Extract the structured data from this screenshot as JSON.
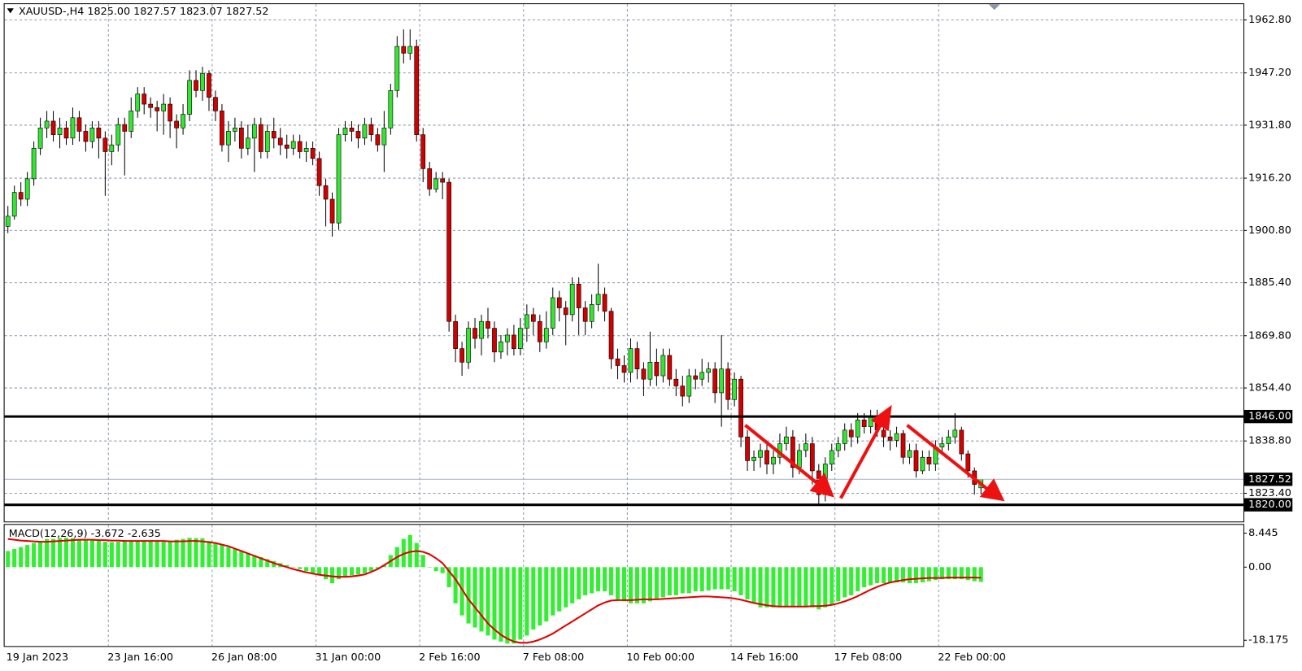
{
  "chart_data": [
    {
      "type": "candlestick",
      "title": "XAUUSD-,H4 1825.00 1827.57 1823.07 1827.52",
      "categories": [
        "19 Jan 2023",
        null,
        null,
        null,
        null,
        null,
        null,
        null,
        null,
        null,
        null,
        null,
        null,
        null,
        null,
        null,
        "23 Jan 16:00",
        null,
        null,
        null,
        null,
        null,
        null,
        null,
        null,
        null,
        null,
        null,
        null,
        null,
        null,
        null,
        "26 Jan 08:00",
        null,
        null,
        null,
        null,
        null,
        null,
        null,
        null,
        null,
        null,
        null,
        null,
        null,
        null,
        null,
        "31 Jan 00:00",
        null,
        null,
        null,
        null,
        null,
        null,
        null,
        null,
        null,
        null,
        null,
        null,
        null,
        null,
        null,
        "2 Feb 16:00",
        null,
        null,
        null,
        null,
        null,
        null,
        null,
        null,
        null,
        null,
        null,
        null,
        null,
        null,
        null,
        "7 Feb 08:00",
        null,
        null,
        null,
        null,
        null,
        null,
        null,
        null,
        null,
        null,
        null,
        null,
        null,
        null,
        null,
        "10 Feb 00:00",
        null,
        null,
        null,
        null,
        null,
        null,
        null,
        null,
        null,
        null,
        null,
        null,
        null,
        null,
        null,
        "14 Feb 16:00",
        null,
        null,
        null,
        null,
        null,
        null,
        null,
        null,
        null,
        null,
        null,
        null,
        null,
        null,
        null,
        "17 Feb 08:00",
        null,
        null,
        null,
        null,
        null,
        null,
        null,
        null,
        null,
        null,
        null,
        null,
        null,
        null,
        null,
        "22 Feb 00:00",
        null,
        null,
        null,
        null,
        null,
        null
      ],
      "open": [
        1902,
        1905,
        1912,
        1910,
        1916,
        1925,
        1931,
        1933,
        1929,
        1931,
        1928,
        1934,
        1930,
        1927,
        1931,
        1928,
        1924,
        1926,
        1932,
        1930,
        1936,
        1941,
        1938,
        1937,
        1936,
        1938,
        1933,
        1931,
        1935,
        1945,
        1942,
        1947,
        1940,
        1936,
        1926,
        1930,
        1931,
        1925,
        1928,
        1932,
        1924,
        1930,
        1928,
        1926,
        1925,
        1927,
        1924,
        1925,
        1922,
        1914,
        1910,
        1903,
        1929,
        1931,
        1930,
        1928,
        1932,
        1929,
        1926,
        1931,
        1942,
        1955,
        1953,
        1955,
        1929,
        1919,
        1913,
        1916,
        1915,
        1874,
        1866,
        1862,
        1872,
        1869,
        1874,
        1872,
        1865,
        1868,
        1870,
        1866,
        1872,
        1876,
        1874,
        1868,
        1872,
        1881,
        1878,
        1876,
        1885,
        1878,
        1874,
        1879,
        1882,
        1877,
        1863,
        1861,
        1859,
        1866,
        1860,
        1857,
        1862,
        1858,
        1864,
        1857,
        1855,
        1852,
        1858,
        1857,
        1859,
        1860,
        1853,
        1860,
        1851,
        1857,
        1840,
        1833,
        1834,
        1836,
        1832,
        1834,
        1838,
        1840,
        1831,
        1836,
        1838,
        1830,
        1823,
        1832,
        1836,
        1838,
        1842,
        1840,
        1845,
        1843,
        1846,
        1842,
        1840,
        1839,
        1841,
        1834,
        1836,
        1830,
        1834,
        1832,
        1837,
        1838,
        1840,
        1842,
        1835,
        1830,
        1825.0
      ],
      "high": [
        1908,
        1914,
        1915,
        1918,
        1927,
        1934,
        1936,
        1936,
        1934,
        1933,
        1937,
        1936,
        1932,
        1933,
        1933,
        1930,
        1929,
        1934,
        1934,
        1940,
        1943,
        1943,
        1940,
        1939,
        1941,
        1940,
        1935,
        1938,
        1948,
        1948,
        1949,
        1948,
        1942,
        1938,
        1933,
        1934,
        1933,
        1932,
        1934,
        1934,
        1932,
        1934,
        1931,
        1929,
        1929,
        1929,
        1927,
        1927,
        1924,
        1916,
        1912,
        1931,
        1933,
        1933,
        1932,
        1934,
        1934,
        1931,
        1936,
        1944,
        1958,
        1960,
        1960,
        1957,
        1931,
        1921,
        1918,
        1918,
        1916,
        1876,
        1868,
        1874,
        1875,
        1876,
        1878,
        1874,
        1870,
        1872,
        1873,
        1875,
        1879,
        1878,
        1876,
        1877,
        1884,
        1883,
        1880,
        1887,
        1887,
        1880,
        1882,
        1891,
        1884,
        1878,
        1866,
        1864,
        1869,
        1868,
        1862,
        1871,
        1866,
        1866,
        1866,
        1860,
        1858,
        1860,
        1860,
        1863,
        1862,
        1862,
        1870,
        1862,
        1859,
        1858,
        1842,
        1836,
        1838,
        1838,
        1836,
        1841,
        1843,
        1842,
        1838,
        1841,
        1840,
        1832,
        1834,
        1838,
        1840,
        1844,
        1844,
        1847,
        1847,
        1848,
        1848,
        1844,
        1842,
        1843,
        1842,
        1838,
        1838,
        1836,
        1836,
        1839,
        1840,
        1842,
        1847,
        1843,
        1836,
        1831,
        1827.57
      ],
      "low": [
        1900,
        1904,
        1908,
        1908,
        1914,
        1923,
        1928,
        1927,
        1925,
        1926,
        1926,
        1927,
        1924,
        1925,
        1922,
        1911,
        1920,
        1924,
        1917,
        1928,
        1934,
        1935,
        1934,
        1930,
        1929,
        1928,
        1925,
        1929,
        1933,
        1940,
        1939,
        1936,
        1933,
        1924,
        1921,
        1927,
        1922,
        1923,
        1918,
        1922,
        1922,
        1925,
        1923,
        1922,
        1923,
        1922,
        1921,
        1920,
        1911,
        1902,
        1899,
        1901,
        1927,
        1927,
        1925,
        1926,
        1927,
        1924,
        1918,
        1929,
        1940,
        1950,
        1951,
        1927,
        1915,
        1911,
        1912,
        1910,
        1871,
        1862,
        1858,
        1860,
        1866,
        1864,
        1869,
        1862,
        1863,
        1864,
        1864,
        1864,
        1868,
        1870,
        1865,
        1866,
        1870,
        1874,
        1867,
        1874,
        1870,
        1870,
        1872,
        1877,
        1874,
        1860,
        1857,
        1856,
        1856,
        1857,
        1852,
        1855,
        1855,
        1856,
        1855,
        1852,
        1849,
        1850,
        1854,
        1855,
        1856,
        1850,
        1843,
        1848,
        1849,
        1837,
        1830,
        1830,
        1831,
        1829,
        1829,
        1832,
        1836,
        1828,
        1829,
        1834,
        1826,
        1820,
        1821,
        1830,
        1834,
        1836,
        1837,
        1838,
        1841,
        1841,
        1840,
        1837,
        1836,
        1837,
        1832,
        1832,
        1828,
        1829,
        1830,
        1830,
        1835,
        1836,
        1838,
        1833,
        1828,
        1823,
        1823.07
      ],
      "close": [
        1905,
        1912,
        1910,
        1916,
        1925,
        1931,
        1933,
        1929,
        1931,
        1928,
        1934,
        1930,
        1927,
        1931,
        1928,
        1924,
        1926,
        1932,
        1930,
        1936,
        1941,
        1938,
        1937,
        1936,
        1938,
        1933,
        1931,
        1935,
        1945,
        1942,
        1947,
        1940,
        1936,
        1926,
        1930,
        1931,
        1925,
        1928,
        1932,
        1924,
        1930,
        1928,
        1926,
        1925,
        1927,
        1924,
        1925,
        1922,
        1914,
        1910,
        1903,
        1929,
        1931,
        1930,
        1928,
        1932,
        1929,
        1926,
        1931,
        1942,
        1955,
        1953,
        1955,
        1929,
        1919,
        1913,
        1916,
        1915,
        1874,
        1866,
        1862,
        1872,
        1869,
        1874,
        1872,
        1865,
        1868,
        1870,
        1866,
        1872,
        1876,
        1874,
        1868,
        1872,
        1881,
        1878,
        1876,
        1885,
        1878,
        1874,
        1879,
        1882,
        1877,
        1863,
        1861,
        1859,
        1866,
        1860,
        1857,
        1862,
        1858,
        1864,
        1857,
        1855,
        1852,
        1858,
        1857,
        1859,
        1860,
        1853,
        1860,
        1851,
        1857,
        1840,
        1833,
        1834,
        1836,
        1832,
        1834,
        1838,
        1840,
        1831,
        1836,
        1838,
        1830,
        1823,
        1832,
        1836,
        1838,
        1842,
        1840,
        1845,
        1843,
        1846,
        1842,
        1840,
        1839,
        1841,
        1834,
        1836,
        1830,
        1834,
        1832,
        1837,
        1838,
        1840,
        1842,
        1835,
        1830,
        1826,
        1827.52
      ],
      "up_color": "#32e632",
      "down_color": "#d40000",
      "ylim": [
        1815.08,
        1967.45
      ],
      "yticks": [
        {
          "value": 1962.8,
          "label": "1962.80"
        },
        {
          "value": 1947.2,
          "label": "1947.20"
        },
        {
          "value": 1931.8,
          "label": "1931.80"
        },
        {
          "value": 1916.2,
          "label": "1916.20"
        },
        {
          "value": 1900.8,
          "label": "1900.80"
        },
        {
          "value": 1885.4,
          "label": "1885.40"
        },
        {
          "value": 1869.8,
          "label": "1869.80"
        },
        {
          "value": 1854.4,
          "label": "1854.40"
        },
        {
          "value": 1838.8,
          "label": "1838.80"
        },
        {
          "value": 1823.4,
          "label": "1823.40"
        }
      ],
      "hlines": [
        {
          "value": 1846,
          "label": "1846.00",
          "color": "#000000"
        },
        {
          "value": 1827.52,
          "label": "1827.52",
          "color": "#a8b0c0"
        },
        {
          "value": 1820,
          "label": "1820.00",
          "color": "#000000"
        }
      ],
      "grid": true
    },
    {
      "type": "macd",
      "title": "MACD(12,26,9) -3.672 -2.635",
      "series": [
        {
          "name": "MACD",
          "color": "#33ee33",
          "values": [
            4,
            4.5,
            5,
            5.5,
            6,
            6.5,
            7,
            7,
            7.2,
            7.3,
            7.2,
            7,
            7,
            6.8,
            6.5,
            6.3,
            6.2,
            6.3,
            6.5,
            6.4,
            6.5,
            6.6,
            6.6,
            6.4,
            6.3,
            6.5,
            6.8,
            7,
            7.3,
            7.2,
            7.2,
            6.5,
            6,
            5.5,
            5,
            4.5,
            4,
            3.5,
            3,
            2.5,
            2,
            1.5,
            1,
            0.5,
            0,
            -0.5,
            -1,
            -1.5,
            -2,
            -3,
            -4,
            -3,
            -2.5,
            -2,
            -1.8,
            -1.5,
            -1,
            -0.5,
            0.5,
            3,
            5,
            7,
            8,
            6,
            3,
            0,
            -1,
            -1.5,
            -5,
            -9,
            -12,
            -14,
            -15,
            -16,
            -17,
            -18,
            -18.5,
            -19,
            -19,
            -18,
            -17,
            -15.5,
            -14.5,
            -13.5,
            -12,
            -11,
            -10,
            -9,
            -8,
            -7,
            -6.5,
            -6,
            -6,
            -7,
            -8,
            -8.5,
            -9,
            -9,
            -9,
            -8.5,
            -8,
            -7.5,
            -7,
            -7,
            -6.5,
            -6.5,
            -6,
            -6,
            -5.8,
            -5.5,
            -5.5,
            -5.5,
            -6,
            -7,
            -8,
            -9,
            -10,
            -10,
            -10,
            -10,
            -10,
            -10,
            -10,
            -10,
            -10,
            -10.5,
            -10,
            -9.5,
            -8.5,
            -7.5,
            -7,
            -6,
            -5,
            -4.5,
            -4,
            -4,
            -4,
            -3.8,
            -3.8,
            -4,
            -4,
            -3.8,
            -3.5,
            -3.2,
            -3,
            -3,
            -3,
            -3,
            -3.2,
            -3.5,
            -3.672
          ]
        },
        {
          "name": "Signal",
          "color": "#e00000",
          "values": [
            7,
            6.8,
            6.6,
            6.5,
            6.4,
            6.3,
            6.3,
            6.4,
            6.5,
            6.6,
            6.7,
            6.8,
            6.8,
            6.8,
            6.7,
            6.7,
            6.6,
            6.6,
            6.5,
            6.5,
            6.5,
            6.5,
            6.5,
            6.5,
            6.5,
            6.4,
            6.4,
            6.4,
            6.5,
            6.5,
            6.4,
            6.2,
            6,
            5.6,
            5.2,
            4.6,
            4,
            3.4,
            2.8,
            2.2,
            1.6,
            1,
            0.5,
            0,
            -0.5,
            -0.9,
            -1.3,
            -1.6,
            -1.9,
            -2.1,
            -2.3,
            -2.4,
            -2.4,
            -2.3,
            -2.1,
            -1.8,
            -1.2,
            -0.5,
            0.5,
            1.5,
            2.5,
            3.3,
            3.8,
            4,
            3.8,
            3.2,
            2.2,
            1,
            -1,
            -3,
            -5.5,
            -8,
            -10,
            -12,
            -14,
            -15.5,
            -16.8,
            -17.8,
            -18.5,
            -18.8,
            -18.8,
            -18.5,
            -18,
            -17.3,
            -16.5,
            -15.5,
            -14.5,
            -13.5,
            -12.5,
            -11.5,
            -10.5,
            -9.5,
            -8.8,
            -8.3,
            -8.2,
            -8.2,
            -8.2,
            -8.1,
            -8,
            -8,
            -8,
            -7.9,
            -7.8,
            -7.7,
            -7.6,
            -7.5,
            -7.4,
            -7.3,
            -7.3,
            -7.4,
            -7.5,
            -7.6,
            -7.8,
            -8.1,
            -8.5,
            -8.9,
            -9.2,
            -9.5,
            -9.7,
            -9.8,
            -9.8,
            -9.8,
            -9.8,
            -9.8,
            -9.7,
            -9.7,
            -9.6,
            -9.4,
            -9.0,
            -8.5,
            -7.9,
            -7.2,
            -6.4,
            -5.6,
            -4.9,
            -4.3,
            -3.8,
            -3.5,
            -3.2,
            -3,
            -2.9,
            -2.8,
            -2.7,
            -2.7,
            -2.7,
            -2.6,
            -2.6,
            -2.6,
            -2.6,
            -2.6,
            -2.635
          ]
        }
      ],
      "ylim": [
        -19.62,
        10.51
      ],
      "yticks": [
        8.445,
        {
          "value": 0,
          "label": "0.00"
        },
        -18.175
      ]
    }
  ]
}
